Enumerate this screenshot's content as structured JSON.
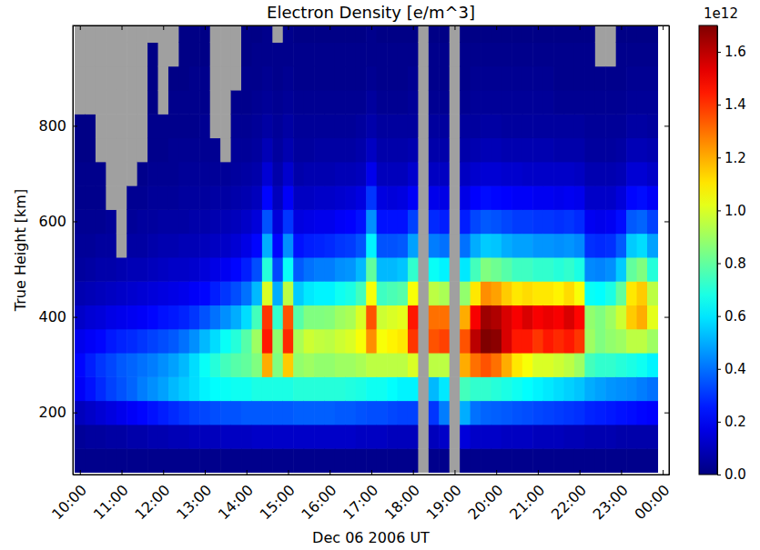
{
  "chart_data": {
    "type": "heatmap",
    "title": "Electron Density [e/m^3]",
    "x_label": "Dec 06 2006 UT",
    "y_label": "True Height [km]",
    "x": [
      10,
      10.25,
      10.5,
      10.75,
      11,
      11.25,
      11.5,
      11.75,
      12,
      12.25,
      12.5,
      12.75,
      13,
      13.25,
      13.5,
      13.75,
      14,
      14.25,
      14.5,
      14.75,
      15,
      15.25,
      15.5,
      15.75,
      16,
      16.25,
      16.5,
      16.75,
      17,
      17.25,
      17.5,
      17.75,
      18,
      18.25,
      18.5,
      18.75,
      19,
      19.25,
      19.5,
      19.75,
      20,
      20.25,
      20.5,
      20.75,
      21,
      21.25,
      21.5,
      21.75,
      22,
      22.25,
      22.5,
      22.75,
      23,
      23.25,
      23.5,
      23.75
    ],
    "y": [
      100,
      150,
      200,
      250,
      300,
      350,
      400,
      450,
      500,
      550,
      600,
      650,
      700,
      750,
      800,
      850,
      900,
      950,
      1000
    ],
    "cells": [
      [
        0.02,
        0.04,
        0.1,
        0.2,
        0.22,
        0.18,
        0.12,
        0.08,
        0.05,
        0.04,
        0.03,
        0.02,
        0.02,
        0.01,
        0.01,
        null,
        null,
        null,
        null
      ],
      [
        0.02,
        0.05,
        0.12,
        0.24,
        0.26,
        0.2,
        0.14,
        0.09,
        0.06,
        0.04,
        0.03,
        0.02,
        0.02,
        0.01,
        0.01,
        null,
        null,
        null,
        null
      ],
      [
        0.02,
        0.05,
        0.14,
        0.28,
        0.3,
        0.22,
        0.15,
        0.1,
        0.07,
        0.05,
        0.03,
        0.02,
        0.02,
        null,
        null,
        null,
        null,
        null,
        null
      ],
      [
        0.02,
        0.06,
        0.16,
        0.32,
        0.33,
        0.25,
        0.17,
        0.11,
        0.07,
        0.05,
        0.04,
        null,
        null,
        null,
        null,
        null,
        null,
        null,
        null
      ],
      [
        0.02,
        0.06,
        0.18,
        0.35,
        0.36,
        0.27,
        0.18,
        0.12,
        0.08,
        null,
        null,
        null,
        null,
        null,
        null,
        null,
        null,
        null,
        null
      ],
      [
        0.02,
        0.07,
        0.2,
        0.38,
        0.38,
        0.28,
        0.19,
        0.13,
        0.09,
        0.06,
        0.04,
        0.03,
        null,
        null,
        null,
        null,
        null,
        null,
        null
      ],
      [
        0.02,
        0.07,
        0.22,
        0.42,
        0.4,
        0.3,
        0.2,
        0.14,
        0.09,
        0.06,
        0.05,
        0.03,
        0.02,
        null,
        null,
        null,
        null,
        null,
        null
      ],
      [
        0.02,
        0.08,
        0.24,
        0.45,
        0.42,
        0.32,
        0.22,
        0.15,
        0.1,
        0.07,
        0.05,
        0.04,
        0.03,
        0.02,
        0.02,
        0.01,
        0.01,
        0.01,
        null
      ],
      [
        0.02,
        0.08,
        0.26,
        0.48,
        0.45,
        0.34,
        0.24,
        0.16,
        0.11,
        0.08,
        0.06,
        0.04,
        0.03,
        0.02,
        0.02,
        null,
        null,
        null,
        null
      ],
      [
        0.02,
        0.09,
        0.28,
        0.52,
        0.48,
        0.36,
        0.25,
        0.17,
        0.12,
        0.08,
        0.06,
        0.04,
        0.03,
        0.03,
        0.02,
        0.02,
        0.01,
        null,
        null
      ],
      [
        0.02,
        0.09,
        0.3,
        0.55,
        0.52,
        0.4,
        0.27,
        0.18,
        0.12,
        0.09,
        0.06,
        0.05,
        0.04,
        0.03,
        0.02,
        0.02,
        0.01,
        0.01,
        0.01
      ],
      [
        0.02,
        0.1,
        0.32,
        0.58,
        0.58,
        0.45,
        0.3,
        0.2,
        0.13,
        0.09,
        0.07,
        0.05,
        0.04,
        0.03,
        0.02,
        0.02,
        0.02,
        0.01,
        0.01
      ],
      [
        0.02,
        0.1,
        0.33,
        0.62,
        0.65,
        0.52,
        0.35,
        0.22,
        0.15,
        0.1,
        0.07,
        0.05,
        0.04,
        0.03,
        0.03,
        0.02,
        0.02,
        0.01,
        0.01
      ],
      [
        0.02,
        0.1,
        0.34,
        0.64,
        0.7,
        0.58,
        0.4,
        0.26,
        0.17,
        0.11,
        0.08,
        0.06,
        0.04,
        0.03,
        null,
        null,
        null,
        null,
        null
      ],
      [
        0.02,
        0.11,
        0.35,
        0.65,
        0.75,
        0.65,
        0.45,
        0.3,
        0.19,
        0.12,
        0.09,
        0.06,
        0.04,
        null,
        null,
        null,
        null,
        null,
        null
      ],
      [
        0.02,
        0.11,
        0.35,
        0.66,
        0.78,
        0.7,
        0.5,
        0.34,
        0.22,
        0.14,
        0.1,
        0.07,
        0.05,
        0.04,
        0.03,
        0.02,
        null,
        null,
        null
      ],
      [
        0.02,
        0.11,
        0.36,
        0.66,
        0.8,
        0.78,
        0.58,
        0.4,
        0.26,
        0.17,
        0.12,
        0.08,
        0.06,
        0.04,
        0.03,
        0.02,
        0.02,
        0.01,
        0.01
      ],
      [
        0.02,
        0.12,
        0.36,
        0.68,
        0.85,
        0.9,
        0.75,
        0.52,
        0.34,
        0.22,
        0.15,
        0.1,
        0.07,
        0.05,
        0.04,
        0.03,
        0.02,
        0.02,
        0.01
      ],
      [
        0.02,
        0.12,
        0.36,
        0.68,
        1.2,
        1.45,
        1.4,
        1.0,
        0.7,
        0.5,
        0.35,
        0.22,
        0.14,
        0.09,
        0.06,
        0.04,
        0.03,
        0.02,
        0.02
      ],
      [
        0.02,
        0.12,
        0.36,
        0.68,
        0.85,
        0.88,
        0.72,
        0.5,
        0.33,
        0.22,
        0.15,
        0.1,
        0.07,
        0.05,
        0.04,
        0.03,
        0.02,
        0.02,
        null
      ],
      [
        0.02,
        0.12,
        0.36,
        0.68,
        1.15,
        1.42,
        1.35,
        0.95,
        0.65,
        0.45,
        0.3,
        0.2,
        0.13,
        0.08,
        0.06,
        0.04,
        0.03,
        0.02,
        0.02
      ],
      [
        0.02,
        0.12,
        0.37,
        0.7,
        0.88,
        0.92,
        0.78,
        0.55,
        0.36,
        0.24,
        0.16,
        0.11,
        0.07,
        0.05,
        0.04,
        0.03,
        0.02,
        0.02,
        0.01
      ],
      [
        0.02,
        0.12,
        0.37,
        0.7,
        0.9,
        0.98,
        0.85,
        0.6,
        0.4,
        0.26,
        0.17,
        0.11,
        0.08,
        0.05,
        0.04,
        0.03,
        0.02,
        0.02,
        0.01
      ],
      [
        0.02,
        0.12,
        0.37,
        0.7,
        0.88,
        0.96,
        0.85,
        0.62,
        0.42,
        0.27,
        0.18,
        0.12,
        0.08,
        0.06,
        0.04,
        0.03,
        0.02,
        0.02,
        0.01
      ],
      [
        0.02,
        0.12,
        0.37,
        0.7,
        0.88,
        0.95,
        0.86,
        0.62,
        0.42,
        0.28,
        0.18,
        0.12,
        0.08,
        0.06,
        0.04,
        0.03,
        0.02,
        0.02,
        0.01
      ],
      [
        0.02,
        0.12,
        0.36,
        0.7,
        0.9,
        0.98,
        0.9,
        0.66,
        0.45,
        0.3,
        0.2,
        0.13,
        0.09,
        0.06,
        0.04,
        0.03,
        0.02,
        0.02,
        0.01
      ],
      [
        0.02,
        0.12,
        0.36,
        0.69,
        0.9,
        1.0,
        0.92,
        0.68,
        0.46,
        0.31,
        0.21,
        0.14,
        0.09,
        0.06,
        0.04,
        0.03,
        0.02,
        0.02,
        0.01
      ],
      [
        0.02,
        0.11,
        0.35,
        0.68,
        0.92,
        1.05,
        1.0,
        0.75,
        0.52,
        0.35,
        0.24,
        0.16,
        0.1,
        0.07,
        0.05,
        0.03,
        0.02,
        0.02,
        0.01
      ],
      [
        0.02,
        0.11,
        0.34,
        0.66,
        0.95,
        1.25,
        1.35,
        1.05,
        0.8,
        0.62,
        0.45,
        0.3,
        0.18,
        0.11,
        0.07,
        0.05,
        0.03,
        0.02,
        0.02
      ],
      [
        0.02,
        0.11,
        0.34,
        0.66,
        0.95,
        1.05,
        0.98,
        0.74,
        0.52,
        0.35,
        0.24,
        0.16,
        0.1,
        0.07,
        0.05,
        0.03,
        0.02,
        0.02,
        0.01
      ],
      [
        0.02,
        0.1,
        0.33,
        0.64,
        0.95,
        1.08,
        1.0,
        0.76,
        0.52,
        0.35,
        0.24,
        0.15,
        0.1,
        0.07,
        0.05,
        0.03,
        0.02,
        0.02,
        0.01
      ],
      [
        0.02,
        0.1,
        0.32,
        0.62,
        0.95,
        1.1,
        1.02,
        0.78,
        0.54,
        0.36,
        0.24,
        0.16,
        0.1,
        0.07,
        0.05,
        0.03,
        0.02,
        0.02,
        0.01
      ],
      [
        0.02,
        0.1,
        0.32,
        0.62,
        1.0,
        1.4,
        1.45,
        1.05,
        0.72,
        0.48,
        0.32,
        0.2,
        0.13,
        0.08,
        0.05,
        0.04,
        0.03,
        0.02,
        0.01
      ],
      [
        null,
        null,
        null,
        null,
        null,
        null,
        null,
        null,
        null,
        null,
        null,
        null,
        null,
        null,
        null,
        null,
        null,
        null,
        null
      ],
      [
        0.02,
        0.1,
        0.3,
        0.52,
        0.95,
        1.35,
        1.3,
        0.95,
        0.65,
        0.42,
        0.28,
        0.18,
        0.11,
        0.07,
        0.05,
        0.03,
        0.02,
        0.02,
        0.01
      ],
      [
        0.02,
        0.12,
        0.42,
        0.6,
        0.95,
        1.38,
        1.3,
        0.92,
        0.62,
        0.4,
        0.26,
        0.17,
        0.11,
        0.07,
        0.05,
        0.03,
        0.02,
        0.02,
        0.01
      ],
      [
        null,
        null,
        null,
        null,
        null,
        null,
        null,
        null,
        null,
        null,
        null,
        null,
        null,
        null,
        null,
        null,
        null,
        null,
        null
      ],
      [
        0.02,
        0.15,
        0.5,
        0.75,
        1.2,
        1.35,
        1.2,
        0.88,
        0.6,
        0.4,
        0.26,
        0.17,
        0.11,
        0.07,
        0.05,
        0.03,
        0.02,
        0.02,
        0.01
      ],
      [
        0.02,
        0.12,
        0.4,
        0.72,
        1.3,
        1.6,
        1.5,
        1.1,
        0.75,
        0.5,
        0.33,
        0.21,
        0.13,
        0.08,
        0.05,
        0.04,
        0.03,
        0.02,
        0.01
      ],
      [
        0.02,
        0.12,
        0.38,
        0.72,
        1.35,
        1.7,
        1.65,
        1.25,
        0.85,
        0.55,
        0.36,
        0.23,
        0.14,
        0.09,
        0.06,
        0.04,
        0.03,
        0.02,
        0.01
      ],
      [
        0.02,
        0.12,
        0.37,
        0.7,
        1.3,
        1.68,
        1.62,
        1.22,
        0.82,
        0.54,
        0.35,
        0.22,
        0.14,
        0.09,
        0.06,
        0.04,
        0.03,
        0.02,
        0.01
      ],
      [
        0.02,
        0.11,
        0.36,
        0.68,
        1.2,
        1.55,
        1.55,
        1.15,
        0.78,
        0.5,
        0.33,
        0.21,
        0.13,
        0.08,
        0.05,
        0.04,
        0.03,
        0.02,
        0.01
      ],
      [
        0.02,
        0.11,
        0.35,
        0.66,
        1.1,
        1.45,
        1.5,
        1.1,
        0.74,
        0.48,
        0.31,
        0.2,
        0.13,
        0.08,
        0.05,
        0.04,
        0.03,
        0.02,
        0.01
      ],
      [
        0.02,
        0.11,
        0.34,
        0.64,
        1.05,
        1.45,
        1.55,
        1.12,
        0.74,
        0.48,
        0.31,
        0.2,
        0.12,
        0.08,
        0.05,
        0.04,
        0.03,
        0.02,
        0.01
      ],
      [
        0.02,
        0.1,
        0.33,
        0.62,
        1.0,
        1.4,
        1.5,
        1.1,
        0.72,
        0.46,
        0.3,
        0.19,
        0.12,
        0.08,
        0.05,
        0.04,
        0.03,
        0.02,
        0.01
      ],
      [
        0.02,
        0.1,
        0.32,
        0.6,
        1.0,
        1.45,
        1.52,
        1.1,
        0.72,
        0.46,
        0.3,
        0.19,
        0.12,
        0.08,
        0.05,
        0.04,
        0.03,
        0.02,
        0.01
      ],
      [
        0.02,
        0.1,
        0.31,
        0.58,
        0.98,
        1.42,
        1.5,
        1.08,
        0.7,
        0.45,
        0.29,
        0.18,
        0.12,
        0.07,
        0.05,
        0.03,
        0.02,
        0.02,
        0.01
      ],
      [
        0.02,
        0.09,
        0.3,
        0.56,
        0.95,
        1.45,
        1.55,
        1.12,
        0.72,
        0.46,
        0.3,
        0.19,
        0.12,
        0.07,
        0.05,
        0.03,
        0.02,
        0.02,
        0.01
      ],
      [
        0.02,
        0.09,
        0.29,
        0.54,
        0.9,
        1.4,
        1.48,
        1.05,
        0.68,
        0.44,
        0.28,
        0.18,
        0.11,
        0.07,
        0.05,
        0.03,
        0.02,
        0.02,
        0.01
      ],
      [
        0.02,
        0.08,
        0.27,
        0.5,
        0.75,
        0.9,
        0.88,
        0.65,
        0.44,
        0.29,
        0.19,
        0.12,
        0.08,
        0.05,
        0.04,
        0.03,
        0.02,
        0.02,
        0.01
      ],
      [
        0.02,
        0.08,
        0.26,
        0.48,
        0.72,
        0.85,
        0.85,
        0.64,
        0.43,
        0.28,
        0.18,
        0.12,
        0.08,
        0.05,
        0.04,
        0.03,
        0.02,
        null,
        null
      ],
      [
        0.02,
        0.08,
        0.25,
        0.46,
        0.72,
        0.88,
        0.9,
        0.68,
        0.45,
        0.29,
        0.19,
        0.12,
        0.08,
        0.05,
        0.04,
        0.03,
        0.02,
        null,
        null
      ],
      [
        0.02,
        0.07,
        0.24,
        0.45,
        0.7,
        0.9,
        0.98,
        0.8,
        0.55,
        0.36,
        0.23,
        0.15,
        0.09,
        0.06,
        0.04,
        0.03,
        0.02,
        0.02,
        0.01
      ],
      [
        0.02,
        0.07,
        0.23,
        0.44,
        0.68,
        0.95,
        1.15,
        1.1,
        0.8,
        0.55,
        0.36,
        0.22,
        0.14,
        0.09,
        0.06,
        0.04,
        0.03,
        0.02,
        0.01
      ],
      [
        0.02,
        0.07,
        0.22,
        0.42,
        0.66,
        0.95,
        1.2,
        1.15,
        0.85,
        0.58,
        0.38,
        0.23,
        0.14,
        0.09,
        0.06,
        0.04,
        0.03,
        0.02,
        0.01
      ],
      [
        0.02,
        0.07,
        0.21,
        0.4,
        0.62,
        0.9,
        1.02,
        0.95,
        0.7,
        0.48,
        0.32,
        0.2,
        0.12,
        0.08,
        0.05,
        0.04,
        0.03,
        0.02,
        0.01
      ]
    ],
    "xlim": [
      9.83,
      24.15
    ],
    "ylim": [
      70,
      1010
    ],
    "xticks": [
      {
        "value": 10,
        "label": "10:00"
      },
      {
        "value": 11,
        "label": "11:00"
      },
      {
        "value": 12,
        "label": "12:00"
      },
      {
        "value": 13,
        "label": "13:00"
      },
      {
        "value": 14,
        "label": "14:00"
      },
      {
        "value": 15,
        "label": "15:00"
      },
      {
        "value": 16,
        "label": "16:00"
      },
      {
        "value": 17,
        "label": "17:00"
      },
      {
        "value": 18,
        "label": "18:00"
      },
      {
        "value": 19,
        "label": "19:00"
      },
      {
        "value": 20,
        "label": "20:00"
      },
      {
        "value": 21,
        "label": "21:00"
      },
      {
        "value": 22,
        "label": "22:00"
      },
      {
        "value": 23,
        "label": "23:00"
      },
      {
        "value": 24,
        "label": "00:00"
      }
    ],
    "yticks": [
      200,
      400,
      600,
      800
    ],
    "colorbar_range": [
      0,
      1.7
    ],
    "colorbar_ticks": [
      {
        "value": 0,
        "label": "0.0"
      },
      {
        "value": 0.2,
        "label": "0.2"
      },
      {
        "value": 0.4,
        "label": "0.4"
      },
      {
        "value": 0.6,
        "label": "0.6"
      },
      {
        "value": 0.8,
        "label": "0.8"
      },
      {
        "value": 1.0,
        "label": "1.0"
      },
      {
        "value": 1.2,
        "label": "1.2"
      },
      {
        "value": 1.4,
        "label": "1.4"
      },
      {
        "value": 1.6,
        "label": "1.6"
      }
    ],
    "colorbar_label": "1e12"
  }
}
